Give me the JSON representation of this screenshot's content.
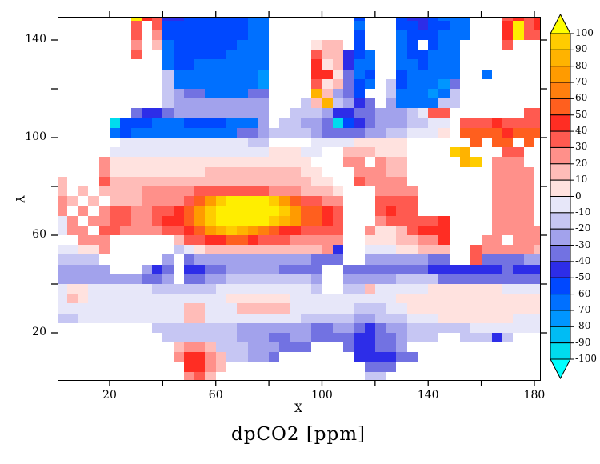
{
  "title": "dpCO2 [ppm]",
  "axes": {
    "x_label": "X",
    "y_label": "Y",
    "x_range": [
      1,
      182
    ],
    "y_range": [
      1,
      149
    ],
    "x_major_ticks": [
      20,
      60,
      100,
      140,
      180
    ],
    "x_minor_ticks": [
      40,
      80,
      120,
      160
    ],
    "y_major_ticks": [
      20,
      60,
      100,
      140
    ],
    "y_minor_ticks": [
      40,
      80,
      120
    ]
  },
  "colorbar": {
    "tick_labels": [
      "100",
      "90",
      "80",
      "70",
      "60",
      "50",
      "40",
      "30",
      "20",
      "10",
      "0",
      "-10",
      "-20",
      "-30",
      "-40",
      "-50",
      "-60",
      "-70",
      "-80",
      "-90",
      "-100"
    ],
    "box_colors_top_to_bottom": [
      "#FFCC00",
      "#FFB300",
      "#FF9B00",
      "#FF7F0E",
      "#FF5F1E",
      "#FF2D23",
      "#FF5A50",
      "#FF908A",
      "#FFBCB8",
      "#FFE2DF",
      "#E7E7F9",
      "#C6C6F3",
      "#A2A2EC",
      "#7272E2",
      "#2D2DE8",
      "#0048FF",
      "#0070FF",
      "#0096FF",
      "#00BCF4",
      "#00DCEE"
    ],
    "over_color": "#FFFF00",
    "under_color": "#00FFFF",
    "outline_color": "#000000"
  },
  "chart_data": {
    "type": "heatmap",
    "title": "dpCO2 [ppm]",
    "xlabel": "X",
    "ylabel": "Y",
    "xlim": [
      1,
      182
    ],
    "ylim": [
      1,
      149
    ],
    "units": "ppm",
    "value_levels_step": 10,
    "value_levels_min": -100,
    "value_levels_max": 100,
    "grid_cell_size": 4,
    "land_code": ".",
    "code_values": {
      "a": -105,
      "b": -95,
      "c": -85,
      "d": -75,
      "e": -65,
      "f": -55,
      "g": -45,
      "h": -35,
      "i": -25,
      "j": -15,
      "k": -5,
      "l": 5,
      "m": 15,
      "n": 25,
      "o": 35,
      "p": 45,
      "q": 55,
      "r": 65,
      "s": 75,
      "t": 85,
      "u": 95,
      "v": 105
    },
    "palette": {
      "a": "#00FFFF",
      "b": "#00DCEE",
      "c": "#00BCF4",
      "d": "#0096FF",
      "e": "#0070FF",
      "f": "#0048FF",
      "g": "#2D2DE8",
      "h": "#7272E2",
      "i": "#A2A2EC",
      "j": "#C6C6F3",
      "k": "#E7E7F9",
      "l": "#FFE2DF",
      "m": "#FFBCB8",
      "n": "#FF908A",
      "o": "#FF5A50",
      "p": "#FF2D23",
      "q": "#FF5F1E",
      "r": "#FF7F0E",
      "s": "#FF9B00",
      "t": "#FFB300",
      "u": "#FFCC00",
      "v": "#FFEE00"
    },
    "rows_top_to_bottom": [
      ".......vpoggffffffee........f...fggfeee...opop",
      ".......o.offffffffee........e...ffgffee...pvop",
      ".......o.nffffffffee........f...efffeee...pvoo",
      ".......n.meffffffeee....lmm.f...ef.fee....o...",
      ".......o..efffffeeee....ommgfe..effeee........",
      "..........effeeeeeee....plmgee..eefeee........",
      "..........jeeeeeeeed....pplhef..feeeee..e.....",
      "..........jeeeeeeeed....olmhfe.jfeeedh........",
      "..........jihheeeehh....tmihf..jeeedej........",
      "..........jiiiiiiiii...jmtjigh.ieeeejj........",
      ".......hgghiiiiiiiii..jjjigghhiiijkoo.......oo",
      ".....bfffeeeffffeeei.jjiihbfghiiijjkk.ooopoooo",
      ".....efeeeeeeeeeehhijjjjihhhhiijjkkkl.qqqqpqqq",
      "......kkkkkkkkkkkkjj....kkkklllll......q.qq.q.",
      ".....kkkkkkkkkkkkkkklllkk..mmmlll....ut...oo..",
      "....nlllllllllllllllllll...nn.nmm.....tu.nnn..",
      "....nlllllllllmmmmmmmmmll...nnnmm........nnnn.",
      "m...ommmmmmmmmmmmmmmmmmmll..onnnn........nnnn.",
      "m.m.mmmmnnnnnooooooonnnmmml...nnnn.......nnnn.",
      "nm.m.mmmnnnnoqsuvvvvusqoonn...oooo.......nnnn.",
      "n.n.noonnoopqsuvvvvvvusqqpo...opoo.......nnnn.",
      "kn.nnoonnoppqsuvvvvvutsqqpo...nooooop....nnnn.",
      "knn.oonnnnoopqstutsrqppoooo..nllmoppp....nnnnn",
      "..nnn......mooppqqpooonnnnn..lllmmnnp...nn.nnn",
      "kklln......jklmmmmmmmmmmmng..kkkllmmm..onnnnnm",
      "jjjj......i.hiiiiiiiiiiihhh..iiiiiihh..ohhhhii",
      "iiiii...igh.gghhiiiiihhhh..hhhhhhhhggggggghggg",
      "iiiiiiiihhi.hhiijjjjjjjji..iiiiijjjjhhhhhhhhhh",
      "kllkkkkkkjjjjjjkkkkkkkkkj..jjmkkkkklllllllkkkk",
      "kmlkkkkkkkkkkkkkllllllkkkkkkkkkkllllllllllllll",
      "kkkkkkkkkkkkmmkkkmmmmmkkkkkkjjjkklllllllllllll",
      "jjkkkkkkkkkkmmkkkkkkkkkjjjjjiijjjkkklllllllkkk",
      ".........jjjjjjjjiiiiiiihhiihghiijjjjjjkkkkkkk",
      "..........jjjjjjjiiihhiihhhhgghhijjj..jjjgj...",
      "...........mnnmjjjiiihhh...hgghhi.............",
      "...........nppnmjjiih.......gggghh............",
      "............ppnm.............hhh..............",
      "............nom..............jj..............."
    ]
  }
}
